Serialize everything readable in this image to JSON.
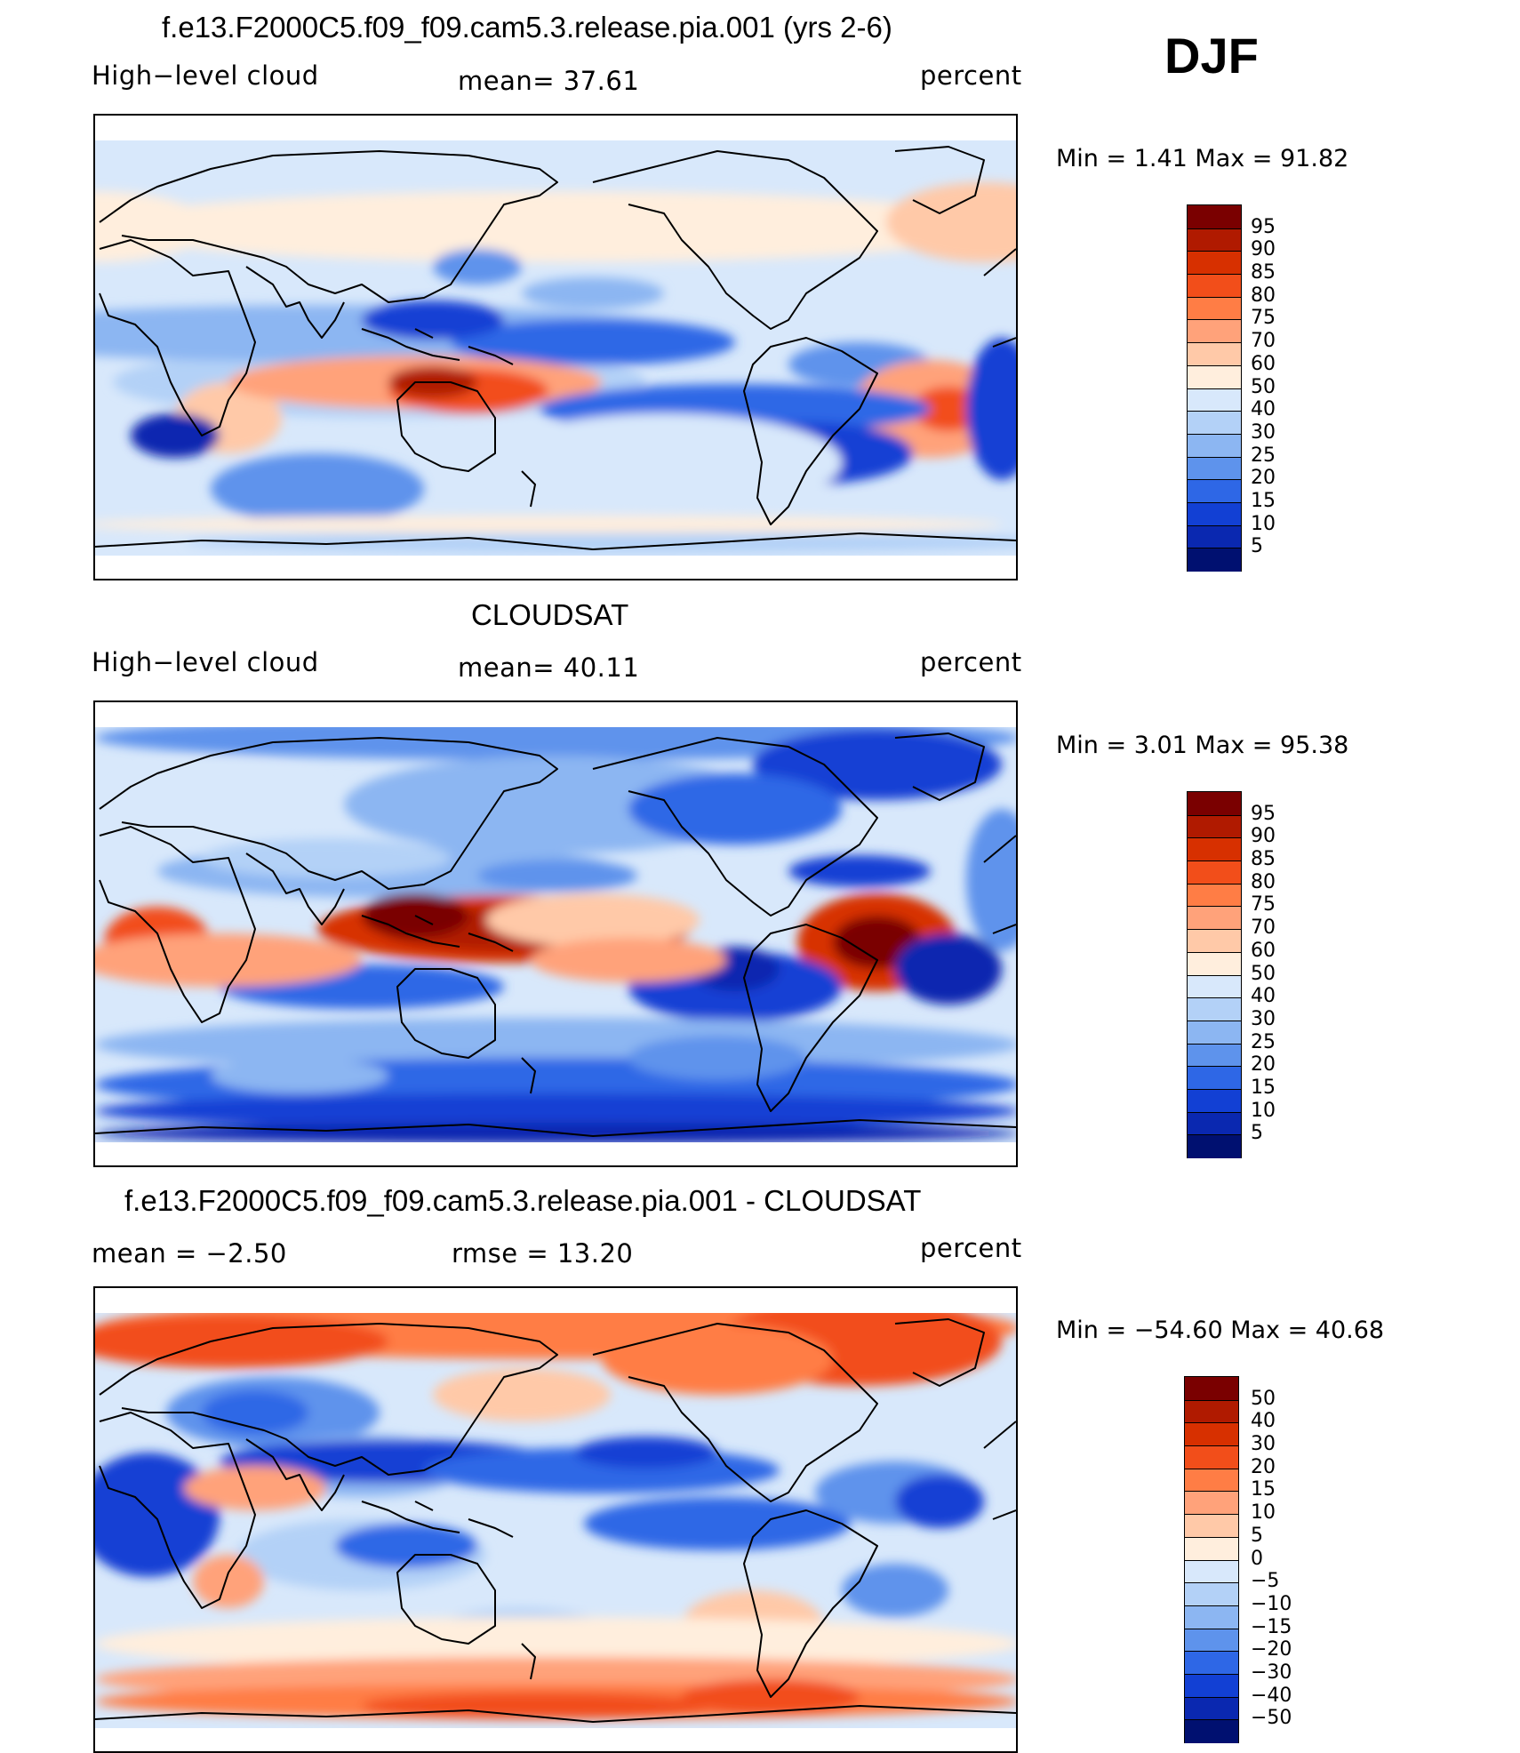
{
  "season": "DJF",
  "panels": [
    {
      "title": "f.e13.F2000C5.f09_f09.cam5.3.release.pia.001 (yrs 2-6)",
      "left_label": "High−level cloud",
      "mid_label": "mean=   37.61",
      "units": "percent",
      "minmax": "Min =     1.41  Max =    91.82",
      "field": "model"
    },
    {
      "title": "CLOUDSAT",
      "left_label": "High−level cloud",
      "mid_label": "mean=   40.11",
      "units": "percent",
      "minmax": "Min =     3.01  Max =    95.38",
      "field": "obs"
    },
    {
      "title": "f.e13.F2000C5.f09_f09.cam5.3.release.pia.001 - CLOUDSAT",
      "left_label": "mean =    −2.50",
      "mid_label": "rmse =    13.20",
      "units": "percent",
      "minmax": "Min = −54.60  Max =    40.68",
      "field": "diff"
    }
  ],
  "colorbars": {
    "abs": {
      "labels": [
        "95",
        "90",
        "85",
        "80",
        "75",
        "70",
        "60",
        "50",
        "40",
        "30",
        "25",
        "20",
        "15",
        "10",
        "5"
      ],
      "colors": [
        "#7a0000",
        "#b01a00",
        "#d73000",
        "#f24e1a",
        "#ff7d45",
        "#ffa27a",
        "#ffc9a8",
        "#ffeedd",
        "#d8e8fb",
        "#b3d1f7",
        "#8cb6f2",
        "#5e93ec",
        "#2e67e6",
        "#1240d4",
        "#0a28b0",
        "#001070"
      ]
    },
    "diff": {
      "labels": [
        "50",
        "40",
        "30",
        "20",
        "15",
        "10",
        "5",
        "0",
        "−5",
        "−10",
        "−15",
        "−20",
        "−30",
        "−40",
        "−50"
      ],
      "colors": [
        "#7a0000",
        "#b01a00",
        "#d73000",
        "#f24e1a",
        "#ff7d45",
        "#ffa27a",
        "#ffc9a8",
        "#ffeedd",
        "#d8e8fb",
        "#b3d1f7",
        "#8cb6f2",
        "#5e93ec",
        "#2e67e6",
        "#1240d4",
        "#0a28b0",
        "#001070"
      ]
    }
  }
}
